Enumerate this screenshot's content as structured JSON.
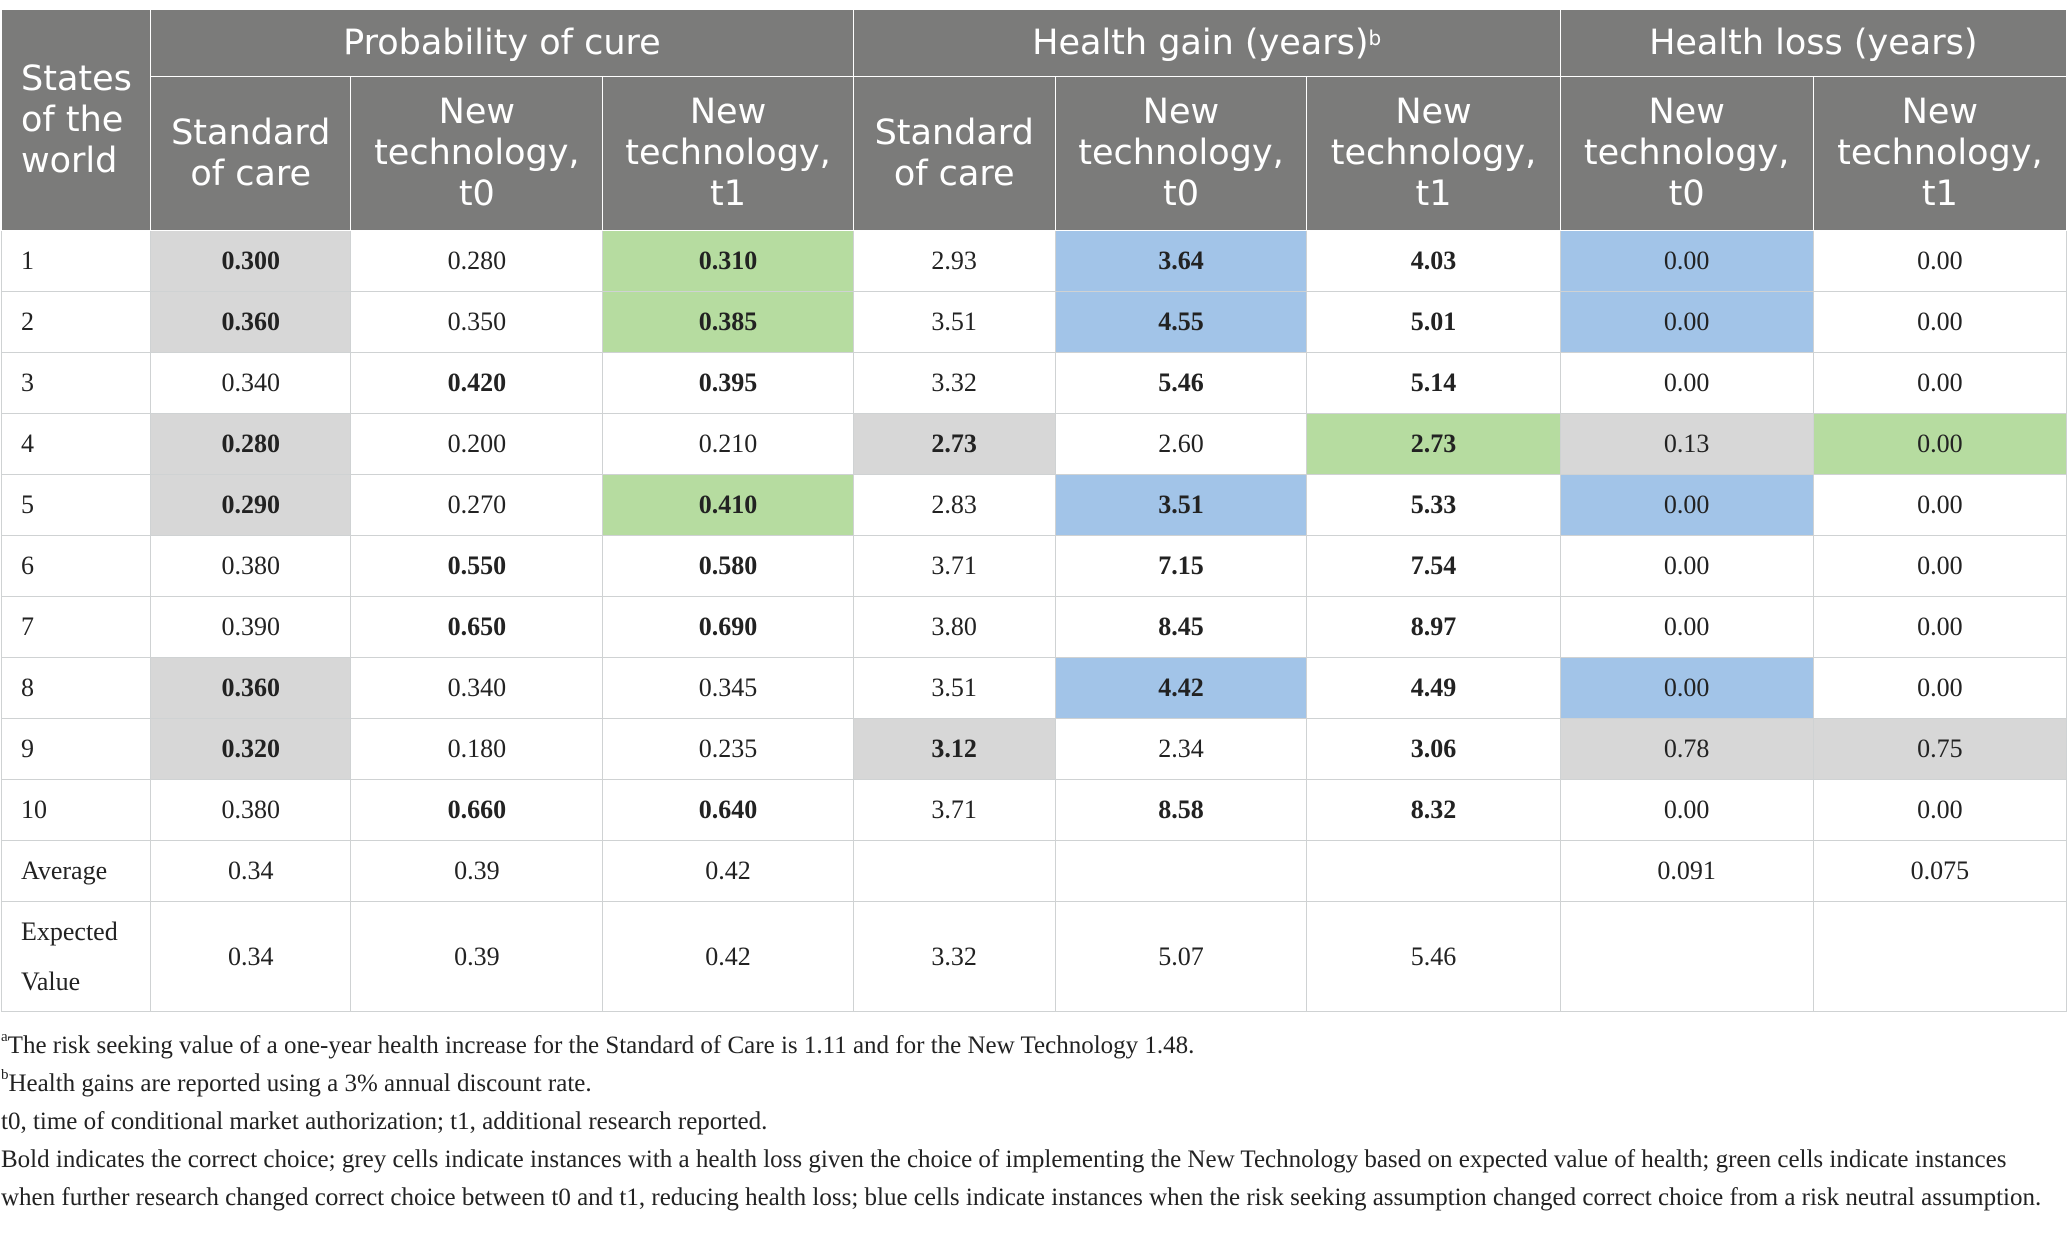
{
  "header": {
    "states": "States of the world",
    "groups": [
      "Probability of cure",
      "Health gain (years)",
      "Health loss (years)"
    ],
    "group_sup": "b",
    "sub": [
      "Standard of care",
      "New technology, t0",
      "New technology, t1",
      "Standard of care",
      "New technology, t0",
      "New technology, t1",
      "New technology, t0",
      "New technology, t1"
    ]
  },
  "rows": [
    {
      "label": "1",
      "cells": [
        {
          "v": "0.300",
          "b": true,
          "c": "grey"
        },
        {
          "v": "0.280",
          "b": false,
          "c": ""
        },
        {
          "v": "0.310",
          "b": true,
          "c": "green"
        },
        {
          "v": "2.93",
          "b": false,
          "c": ""
        },
        {
          "v": "3.64",
          "b": true,
          "c": "blue"
        },
        {
          "v": "4.03",
          "b": true,
          "c": ""
        },
        {
          "v": "0.00",
          "b": false,
          "c": "blue"
        },
        {
          "v": "0.00",
          "b": false,
          "c": ""
        }
      ]
    },
    {
      "label": "2",
      "cells": [
        {
          "v": "0.360",
          "b": true,
          "c": "grey"
        },
        {
          "v": "0.350",
          "b": false,
          "c": ""
        },
        {
          "v": "0.385",
          "b": true,
          "c": "green"
        },
        {
          "v": "3.51",
          "b": false,
          "c": ""
        },
        {
          "v": "4.55",
          "b": true,
          "c": "blue"
        },
        {
          "v": "5.01",
          "b": true,
          "c": ""
        },
        {
          "v": "0.00",
          "b": false,
          "c": "blue"
        },
        {
          "v": "0.00",
          "b": false,
          "c": ""
        }
      ]
    },
    {
      "label": "3",
      "cells": [
        {
          "v": "0.340",
          "b": false,
          "c": ""
        },
        {
          "v": "0.420",
          "b": true,
          "c": ""
        },
        {
          "v": "0.395",
          "b": true,
          "c": ""
        },
        {
          "v": "3.32",
          "b": false,
          "c": ""
        },
        {
          "v": "5.46",
          "b": true,
          "c": ""
        },
        {
          "v": "5.14",
          "b": true,
          "c": ""
        },
        {
          "v": "0.00",
          "b": false,
          "c": ""
        },
        {
          "v": "0.00",
          "b": false,
          "c": ""
        }
      ]
    },
    {
      "label": "4",
      "cells": [
        {
          "v": "0.280",
          "b": true,
          "c": "grey"
        },
        {
          "v": "0.200",
          "b": false,
          "c": ""
        },
        {
          "v": "0.210",
          "b": false,
          "c": ""
        },
        {
          "v": "2.73",
          "b": true,
          "c": "grey"
        },
        {
          "v": "2.60",
          "b": false,
          "c": ""
        },
        {
          "v": "2.73",
          "b": true,
          "c": "green"
        },
        {
          "v": "0.13",
          "b": false,
          "c": "grey"
        },
        {
          "v": "0.00",
          "b": false,
          "c": "green"
        }
      ]
    },
    {
      "label": "5",
      "cells": [
        {
          "v": "0.290",
          "b": true,
          "c": "grey"
        },
        {
          "v": "0.270",
          "b": false,
          "c": ""
        },
        {
          "v": "0.410",
          "b": true,
          "c": "green"
        },
        {
          "v": "2.83",
          "b": false,
          "c": ""
        },
        {
          "v": "3.51",
          "b": true,
          "c": "blue"
        },
        {
          "v": "5.33",
          "b": true,
          "c": ""
        },
        {
          "v": "0.00",
          "b": false,
          "c": "blue"
        },
        {
          "v": "0.00",
          "b": false,
          "c": ""
        }
      ]
    },
    {
      "label": "6",
      "cells": [
        {
          "v": "0.380",
          "b": false,
          "c": ""
        },
        {
          "v": "0.550",
          "b": true,
          "c": ""
        },
        {
          "v": "0.580",
          "b": true,
          "c": ""
        },
        {
          "v": "3.71",
          "b": false,
          "c": ""
        },
        {
          "v": "7.15",
          "b": true,
          "c": ""
        },
        {
          "v": "7.54",
          "b": true,
          "c": ""
        },
        {
          "v": "0.00",
          "b": false,
          "c": ""
        },
        {
          "v": "0.00",
          "b": false,
          "c": ""
        }
      ]
    },
    {
      "label": "7",
      "cells": [
        {
          "v": "0.390",
          "b": false,
          "c": ""
        },
        {
          "v": "0.650",
          "b": true,
          "c": ""
        },
        {
          "v": "0.690",
          "b": true,
          "c": ""
        },
        {
          "v": "3.80",
          "b": false,
          "c": ""
        },
        {
          "v": "8.45",
          "b": true,
          "c": ""
        },
        {
          "v": "8.97",
          "b": true,
          "c": ""
        },
        {
          "v": "0.00",
          "b": false,
          "c": ""
        },
        {
          "v": "0.00",
          "b": false,
          "c": ""
        }
      ]
    },
    {
      "label": "8",
      "cells": [
        {
          "v": "0.360",
          "b": true,
          "c": "grey"
        },
        {
          "v": "0.340",
          "b": false,
          "c": ""
        },
        {
          "v": "0.345",
          "b": false,
          "c": ""
        },
        {
          "v": "3.51",
          "b": false,
          "c": ""
        },
        {
          "v": "4.42",
          "b": true,
          "c": "blue"
        },
        {
          "v": "4.49",
          "b": true,
          "c": ""
        },
        {
          "v": "0.00",
          "b": false,
          "c": "blue"
        },
        {
          "v": "0.00",
          "b": false,
          "c": ""
        }
      ]
    },
    {
      "label": "9",
      "cells": [
        {
          "v": "0.320",
          "b": true,
          "c": "grey"
        },
        {
          "v": "0.180",
          "b": false,
          "c": ""
        },
        {
          "v": "0.235",
          "b": false,
          "c": ""
        },
        {
          "v": "3.12",
          "b": true,
          "c": "grey"
        },
        {
          "v": "2.34",
          "b": false,
          "c": ""
        },
        {
          "v": "3.06",
          "b": true,
          "c": ""
        },
        {
          "v": "0.78",
          "b": false,
          "c": "grey"
        },
        {
          "v": "0.75",
          "b": false,
          "c": "grey"
        }
      ]
    },
    {
      "label": "10",
      "cells": [
        {
          "v": "0.380",
          "b": false,
          "c": ""
        },
        {
          "v": "0.660",
          "b": true,
          "c": ""
        },
        {
          "v": "0.640",
          "b": true,
          "c": ""
        },
        {
          "v": "3.71",
          "b": false,
          "c": ""
        },
        {
          "v": "8.58",
          "b": true,
          "c": ""
        },
        {
          "v": "8.32",
          "b": true,
          "c": ""
        },
        {
          "v": "0.00",
          "b": false,
          "c": ""
        },
        {
          "v": "0.00",
          "b": false,
          "c": ""
        }
      ]
    },
    {
      "label": "Average",
      "cells": [
        {
          "v": "0.34",
          "b": false,
          "c": ""
        },
        {
          "v": "0.39",
          "b": false,
          "c": ""
        },
        {
          "v": "0.42",
          "b": false,
          "c": ""
        },
        {
          "v": "",
          "b": false,
          "c": ""
        },
        {
          "v": "",
          "b": false,
          "c": ""
        },
        {
          "v": "",
          "b": false,
          "c": ""
        },
        {
          "v": "0.091",
          "b": false,
          "c": ""
        },
        {
          "v": "0.075",
          "b": false,
          "c": ""
        }
      ]
    },
    {
      "label": "Expected Value",
      "cells": [
        {
          "v": "0.34",
          "b": false,
          "c": ""
        },
        {
          "v": "0.39",
          "b": false,
          "c": ""
        },
        {
          "v": "0.42",
          "b": false,
          "c": ""
        },
        {
          "v": "3.32",
          "b": false,
          "c": ""
        },
        {
          "v": "5.07",
          "b": false,
          "c": ""
        },
        {
          "v": "5.46",
          "b": false,
          "c": ""
        },
        {
          "v": "",
          "b": false,
          "c": ""
        },
        {
          "v": "",
          "b": false,
          "c": ""
        }
      ]
    }
  ],
  "footnotes": [
    {
      "sup": "a",
      "text": "The risk seeking value of a one-year health increase for the Standard of Care is 1.11 and for the New Technology 1.48."
    },
    {
      "sup": "b",
      "text": "Health gains are reported using a 3% annual discount rate."
    },
    {
      "sup": "",
      "text": "t0, time of conditional market authorization; t1, additional research reported."
    },
    {
      "sup": "",
      "text": "Bold indicates the correct choice; grey cells indicate instances with a health loss given the choice of implementing the New Technology based on expected value of health; green cells indicate instances when further research changed correct choice between t0 and t1, reducing health loss; blue cells indicate instances when the risk seeking assumption changed correct choice from a risk neutral assumption."
    }
  ]
}
